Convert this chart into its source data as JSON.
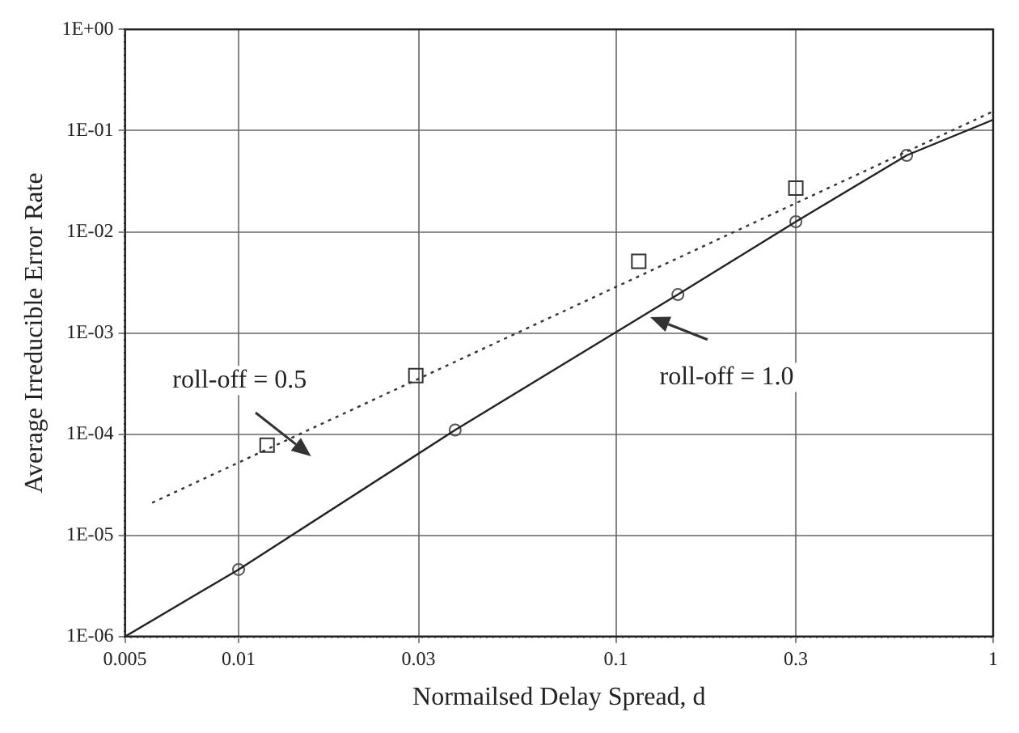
{
  "chart_data": {
    "type": "line",
    "xlabel": "Normailsed Delay Spread, d",
    "ylabel": "Average Irreducible Error Rate",
    "xlim": [
      0.005,
      1
    ],
    "xticks": [
      0.005,
      0.01,
      0.03,
      0.1,
      0.3,
      1
    ],
    "ylim": [
      1e-06,
      1
    ],
    "yticks": [
      {
        "value": 1e-06,
        "label": "1E-06"
      },
      {
        "value": 1e-05,
        "label": "1E-05"
      },
      {
        "value": 0.0001,
        "label": "1E-04"
      },
      {
        "value": 0.001,
        "label": "1E-03"
      },
      {
        "value": 0.01,
        "label": "1E-02"
      },
      {
        "value": 0.1,
        "label": "1E-01"
      },
      {
        "value": 1,
        "label": "1E+00"
      }
    ],
    "log": "xy",
    "grid": true,
    "legend": false,
    "series": [
      {
        "color": "#333333",
        "line_style": "dotted",
        "marker": "none",
        "x": [
          0.0059,
          1
        ],
        "values": [
          2.1e-05,
          0.155
        ]
      },
      {
        "type": "scatter",
        "color": "#333333",
        "marker": "square",
        "x": [
          0.0119,
          0.0295,
          0.115,
          0.3
        ],
        "values": [
          7.8e-05,
          0.00038,
          0.0051,
          0.027
        ]
      },
      {
        "color": "#222222",
        "line_style": "solid",
        "marker": "none",
        "x": [
          0.005,
          0.01,
          0.0375,
          0.146,
          0.3,
          0.59,
          1
        ],
        "values": [
          1e-06,
          4.6e-06,
          0.00011,
          0.0024,
          0.0126,
          0.057,
          0.128
        ]
      },
      {
        "type": "scatter",
        "color": "#555555",
        "marker": "circle",
        "x": [
          0.01,
          0.0375,
          0.146,
          0.3,
          0.59
        ],
        "values": [
          4.6e-06,
          0.00011,
          0.0024,
          0.0126,
          0.057
        ]
      }
    ],
    "annotations": [
      "roll-off = 0.5",
      "roll-off = 1.0"
    ]
  }
}
